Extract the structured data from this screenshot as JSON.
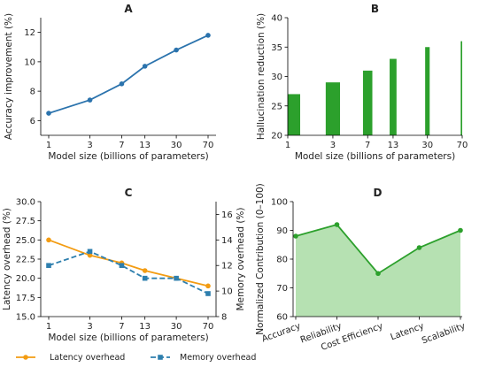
{
  "colors": {
    "blue": "#2b73ad",
    "green": "#2ca02c",
    "green_fill": "#a9dca4",
    "orange": "#f39c12",
    "teal": "#2e7fae"
  },
  "chart_data": [
    {
      "panel": "A",
      "type": "line",
      "title": "A",
      "xlabel": "Model size (billions of parameters)",
      "ylabel": "Accuracy improvement (%)",
      "xscale": "log",
      "x": [
        1,
        3,
        7,
        13,
        30,
        70
      ],
      "xticks": [
        1,
        3,
        7,
        13,
        30,
        70
      ],
      "yticks": [
        6,
        8,
        10,
        12
      ],
      "ylim": [
        5,
        13
      ],
      "series": [
        {
          "values": [
            6.5,
            7.4,
            8.5,
            9.7,
            10.8,
            11.8
          ],
          "color": "#2b73ad",
          "marker": "circle"
        }
      ]
    },
    {
      "panel": "B",
      "type": "bar",
      "title": "B",
      "xlabel": "Model size (billions of parameters)",
      "ylabel": "Hallucination reduction (%)",
      "xscale": "log",
      "x": [
        1,
        3,
        7,
        13,
        30,
        70
      ],
      "xticks": [
        1,
        3,
        7,
        13,
        30,
        70
      ],
      "yticks": [
        20,
        25,
        30,
        35,
        40
      ],
      "ylim": [
        20,
        40
      ],
      "values": [
        27,
        29,
        31,
        33,
        35,
        36
      ],
      "color": "#2ca02c"
    },
    {
      "panel": "C",
      "type": "line",
      "title": "C",
      "xlabel": "Model size (billions of parameters)",
      "ylabel": "Latency overhead (%)",
      "ylabel_right": "Memory overhead (%)",
      "xscale": "log",
      "x": [
        1,
        3,
        7,
        13,
        30,
        70
      ],
      "xticks": [
        1,
        3,
        7,
        13,
        30,
        70
      ],
      "yticks": [
        15.0,
        17.5,
        20.0,
        22.5,
        25.0,
        27.5,
        30.0
      ],
      "ytick_labels": [
        "15.0",
        "17.5",
        "20.0",
        "22.5",
        "25.0",
        "27.5",
        "30.0"
      ],
      "ylim": [
        15,
        30
      ],
      "yticks_right": [
        8,
        10,
        12,
        14,
        16
      ],
      "ylim_right": [
        8,
        17
      ],
      "series": [
        {
          "name": "Latency overhead",
          "axis": "left",
          "values": [
            25.0,
            23.0,
            22.0,
            21.0,
            20.0,
            19.0
          ],
          "color": "#f39c12",
          "marker": "circle",
          "dash": "solid"
        },
        {
          "name": "Memory overhead",
          "axis": "right",
          "values": [
            12.0,
            13.1,
            12.0,
            11.0,
            11.0,
            9.8
          ],
          "color": "#2e7fae",
          "marker": "square",
          "dash": "dashed"
        }
      ],
      "legend": "bottom"
    },
    {
      "panel": "D",
      "type": "area",
      "title": "D",
      "xlabel": "",
      "ylabel": "Normalized Contribution (0–100)",
      "categories": [
        "Accuracy",
        "Reliability",
        "Cost Efficiency",
        "Latency",
        "Scalability"
      ],
      "values": [
        88,
        92,
        75,
        84,
        90
      ],
      "yticks": [
        60,
        70,
        80,
        90,
        100
      ],
      "ylim": [
        60,
        100
      ],
      "color": "#2ca02c"
    }
  ]
}
